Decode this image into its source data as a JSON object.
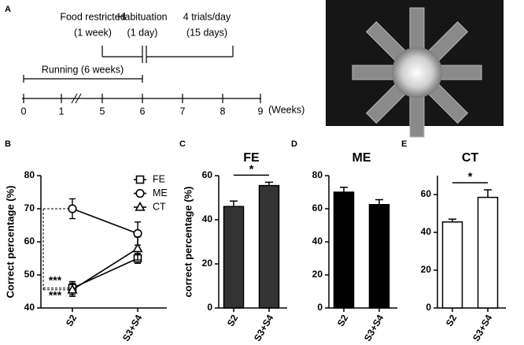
{
  "panel_labels": [
    "A",
    "B",
    "C",
    "D",
    "E"
  ],
  "timeline": {
    "events": [
      {
        "label": "Food restricted",
        "duration": "(1 week)"
      },
      {
        "label": "Habituation",
        "duration": "(1 day)"
      },
      {
        "label": "4 trials/day",
        "duration": "(15 days)"
      }
    ],
    "running": "Running (6 weeks)",
    "ticks": [
      "0",
      "1",
      "5",
      "6",
      "7",
      "8",
      "9"
    ],
    "unit": "(Weeks)"
  },
  "chart_data": [
    {
      "type": "line",
      "ylabel": "Correct percentage (%)",
      "categories": [
        "S2",
        "S3+S4"
      ],
      "series": [
        {
          "name": "FE",
          "marker": "square",
          "color": "#000000",
          "values": [
            46,
            55
          ],
          "errors": [
            2,
            1.5
          ]
        },
        {
          "name": "ME",
          "marker": "circle",
          "color": "#000000",
          "values": [
            70,
            62.5
          ],
          "errors": [
            3,
            3.5
          ]
        },
        {
          "name": "CT",
          "marker": "triangle",
          "color": "#000000",
          "values": [
            45.5,
            58
          ],
          "errors": [
            2,
            3.5
          ]
        }
      ],
      "ylim": [
        40,
        80
      ],
      "yticks": [
        40,
        50,
        60,
        70,
        80
      ],
      "annotations": [
        "***",
        "***"
      ]
    },
    {
      "type": "bar",
      "title": "FE",
      "ylabel": "correct percentage (%)",
      "categories": [
        "S2",
        "S3+S4"
      ],
      "values": [
        46,
        55.5
      ],
      "errors": [
        2.5,
        1.5
      ],
      "color": "#333333",
      "ylim": [
        0,
        60
      ],
      "yticks": [
        0,
        20,
        40,
        60
      ],
      "significance": "*"
    },
    {
      "type": "bar",
      "title": "ME",
      "categories": [
        "S2",
        "S3+S4"
      ],
      "values": [
        70,
        62.5
      ],
      "errors": [
        3,
        3
      ],
      "color": "#000000",
      "ylim": [
        0,
        80
      ],
      "yticks": [
        0,
        20,
        40,
        60,
        80
      ]
    },
    {
      "type": "bar",
      "title": "CT",
      "categories": [
        "S2",
        "S3+S4"
      ],
      "values": [
        45.5,
        58.5
      ],
      "errors": [
        1.5,
        4
      ],
      "color": "#ffffff",
      "ylim": [
        0,
        70
      ],
      "yticks": [
        0,
        20,
        40,
        60
      ],
      "significance": "*"
    }
  ]
}
